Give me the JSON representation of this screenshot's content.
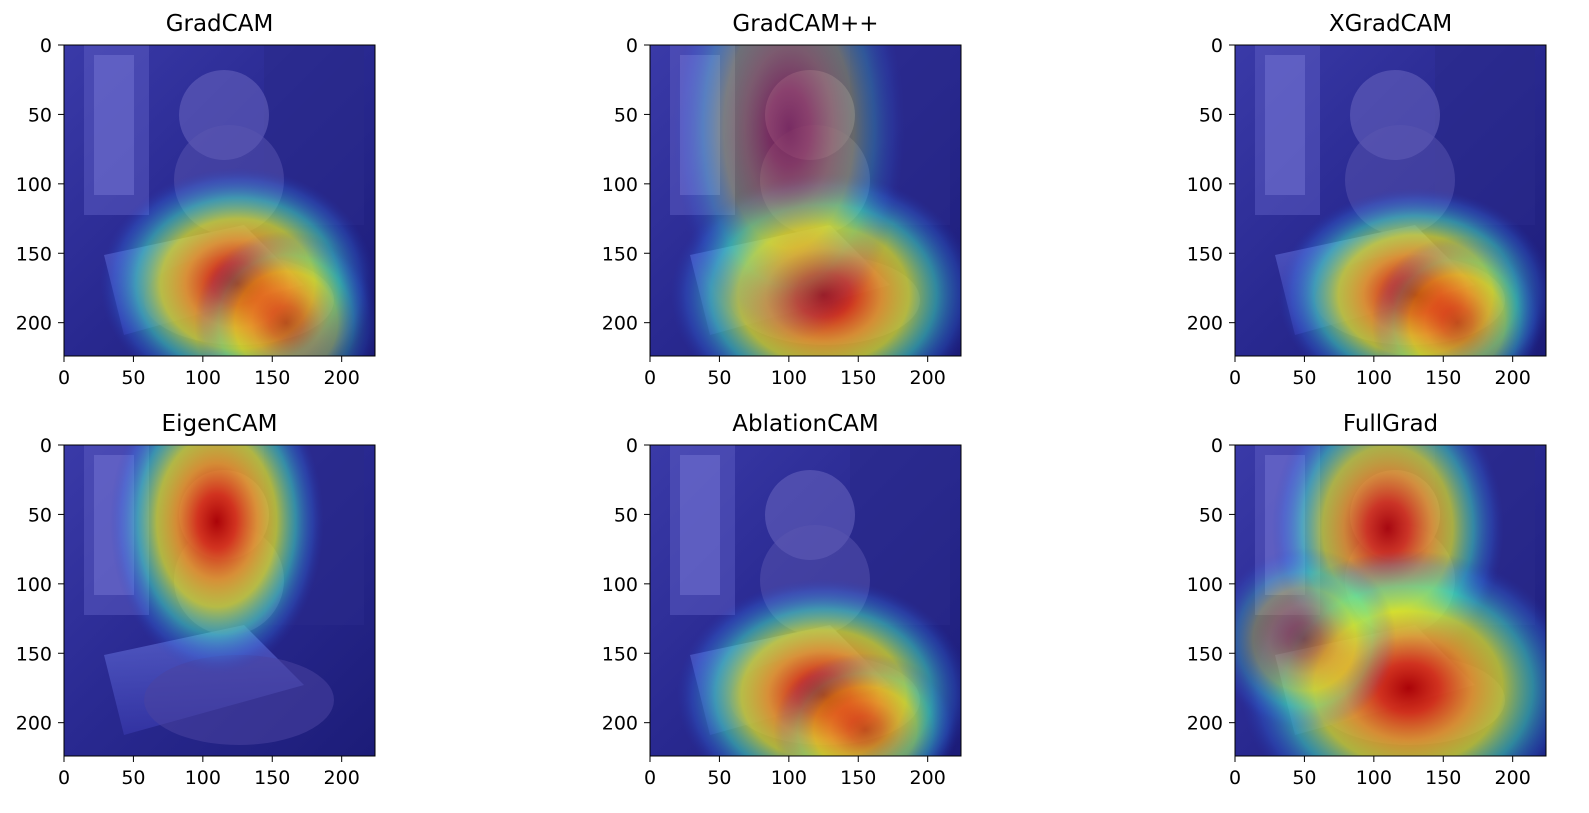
{
  "chart_data": [
    {
      "type": "heatmap",
      "title": "GradCAM",
      "xlim": [
        0,
        224
      ],
      "ylim": [
        224,
        0
      ],
      "x_ticks": [
        "0",
        "50",
        "100",
        "150",
        "200"
      ],
      "y_ticks": [
        "0",
        "50",
        "100",
        "150",
        "200"
      ],
      "colormap": "jet",
      "hotspots": [
        {
          "x": 125,
          "y": 172,
          "strength": 1.0,
          "sx": 45,
          "sy": 38
        },
        {
          "x": 160,
          "y": 200,
          "strength": 0.55,
          "sx": 30,
          "sy": 30
        }
      ]
    },
    {
      "type": "heatmap",
      "title": "GradCAM++",
      "xlim": [
        0,
        224
      ],
      "ylim": [
        224,
        0
      ],
      "x_ticks": [
        "0",
        "50",
        "100",
        "150",
        "200"
      ],
      "y_ticks": [
        "0",
        "50",
        "100",
        "150",
        "200"
      ],
      "colormap": "jet",
      "hotspots": [
        {
          "x": 125,
          "y": 180,
          "strength": 1.0,
          "sx": 50,
          "sy": 40
        },
        {
          "x": 100,
          "y": 60,
          "strength": 0.45,
          "sx": 38,
          "sy": 70
        }
      ]
    },
    {
      "type": "heatmap",
      "title": "XGradCAM",
      "xlim": [
        0,
        224
      ],
      "ylim": [
        224,
        0
      ],
      "x_ticks": [
        "0",
        "50",
        "100",
        "150",
        "200"
      ],
      "y_ticks": [
        "0",
        "50",
        "100",
        "150",
        "200"
      ],
      "colormap": "jet",
      "hotspots": [
        {
          "x": 130,
          "y": 180,
          "strength": 1.0,
          "sx": 45,
          "sy": 35
        },
        {
          "x": 160,
          "y": 200,
          "strength": 0.5,
          "sx": 28,
          "sy": 28
        }
      ]
    },
    {
      "type": "heatmap",
      "title": "EigenCAM",
      "xlim": [
        0,
        224
      ],
      "ylim": [
        224,
        0
      ],
      "x_ticks": [
        "0",
        "50",
        "100",
        "150",
        "200"
      ],
      "y_ticks": [
        "0",
        "50",
        "100",
        "150",
        "200"
      ],
      "colormap": "jet",
      "hotspots": [
        {
          "x": 110,
          "y": 55,
          "strength": 1.0,
          "sx": 35,
          "sy": 50
        }
      ]
    },
    {
      "type": "heatmap",
      "title": "AblationCAM",
      "xlim": [
        0,
        224
      ],
      "ylim": [
        224,
        0
      ],
      "x_ticks": [
        "0",
        "50",
        "100",
        "150",
        "200"
      ],
      "y_ticks": [
        "0",
        "50",
        "100",
        "150",
        "200"
      ],
      "colormap": "jet",
      "hotspots": [
        {
          "x": 125,
          "y": 180,
          "strength": 1.0,
          "sx": 48,
          "sy": 38
        },
        {
          "x": 155,
          "y": 205,
          "strength": 0.5,
          "sx": 30,
          "sy": 25
        }
      ]
    },
    {
      "type": "heatmap",
      "title": "FullGrad",
      "xlim": [
        0,
        224
      ],
      "ylim": [
        224,
        0
      ],
      "x_ticks": [
        "0",
        "50",
        "100",
        "150",
        "200"
      ],
      "y_ticks": [
        "0",
        "50",
        "100",
        "150",
        "200"
      ],
      "colormap": "jet",
      "hotspots": [
        {
          "x": 110,
          "y": 60,
          "strength": 0.95,
          "sx": 38,
          "sy": 48
        },
        {
          "x": 125,
          "y": 175,
          "strength": 1.0,
          "sx": 55,
          "sy": 45
        },
        {
          "x": 50,
          "y": 140,
          "strength": 0.5,
          "sx": 30,
          "sy": 30
        }
      ]
    }
  ]
}
